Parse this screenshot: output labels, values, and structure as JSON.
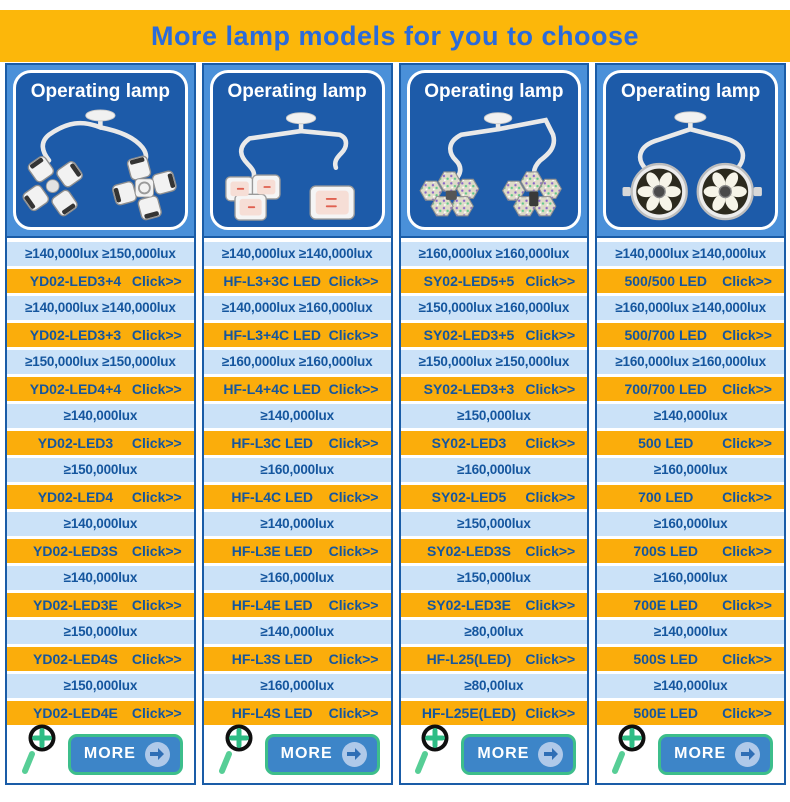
{
  "banner": {
    "title": "More lamp models for you to choose"
  },
  "colors": {
    "banner_bg": "#FCB70A",
    "banner_text": "#2A6BDB",
    "column_frame": "#4A90D9",
    "column_border": "#1A5CA7",
    "panel_bg": "#1D5BA9",
    "lux_row_bg": "#CBE2F8",
    "model_row_bg": "#FBAD0B",
    "row_text": "#15569E",
    "more_button_bg": "#3D85C8",
    "more_button_border": "#3DBE8B",
    "magnifier_green": "#2EBD85"
  },
  "columns": [
    {
      "header": "Operating lamp",
      "image_icon": "dual-petal-head-lamp-icon",
      "more_label": "MORE",
      "rows": [
        {
          "type": "lux",
          "text": "≥140,000lux ≥150,000lux"
        },
        {
          "type": "model",
          "model": "YD02-LED3+4",
          "click": "Click>>"
        },
        {
          "type": "lux",
          "text": "≥140,000lux ≥140,000lux"
        },
        {
          "type": "model",
          "model": "YD02-LED3+3",
          "click": "Click>>"
        },
        {
          "type": "lux",
          "text": "≥150,000lux ≥150,000lux"
        },
        {
          "type": "model",
          "model": "YD02-LED4+4",
          "click": "Click>>"
        },
        {
          "type": "lux",
          "text": "≥140,000lux"
        },
        {
          "type": "model",
          "model": "YD02-LED3",
          "click": "Click>>"
        },
        {
          "type": "lux",
          "text": "≥150,000lux"
        },
        {
          "type": "model",
          "model": "YD02-LED4",
          "click": "Click>>"
        },
        {
          "type": "lux",
          "text": "≥140,000lux"
        },
        {
          "type": "model",
          "model": "YD02-LED3S",
          "click": "Click>>"
        },
        {
          "type": "lux",
          "text": "≥140,000lux"
        },
        {
          "type": "model",
          "model": "YD02-LED3E",
          "click": "Click>>"
        },
        {
          "type": "lux",
          "text": "≥150,000lux"
        },
        {
          "type": "model",
          "model": "YD02-LED4S",
          "click": "Click>>"
        },
        {
          "type": "lux",
          "text": "≥150,000lux"
        },
        {
          "type": "model",
          "model": "YD02-LED4E",
          "click": "Click>>"
        }
      ]
    },
    {
      "header": "Operating lamp",
      "image_icon": "dual-square-head-lamp-icon",
      "more_label": "MORE",
      "rows": [
        {
          "type": "lux",
          "text": "≥140,000lux ≥140,000lux"
        },
        {
          "type": "model",
          "model": "HF-L3+3C LED",
          "click": "Click>>"
        },
        {
          "type": "lux",
          "text": "≥140,000lux ≥160,000lux"
        },
        {
          "type": "model",
          "model": "HF-L3+4C LED",
          "click": "Click>>"
        },
        {
          "type": "lux",
          "text": "≥160,000lux ≥160,000lux"
        },
        {
          "type": "model",
          "model": "HF-L4+4C LED",
          "click": "Click>>"
        },
        {
          "type": "lux",
          "text": "≥140,000lux"
        },
        {
          "type": "model",
          "model": "HF-L3C LED",
          "click": "Click>>"
        },
        {
          "type": "lux",
          "text": "≥160,000lux"
        },
        {
          "type": "model",
          "model": "HF-L4C LED",
          "click": "Click>>"
        },
        {
          "type": "lux",
          "text": "≥140,000lux"
        },
        {
          "type": "model",
          "model": "HF-L3E LED",
          "click": "Click>>"
        },
        {
          "type": "lux",
          "text": "≥160,000lux"
        },
        {
          "type": "model",
          "model": "HF-L4E LED",
          "click": "Click>>"
        },
        {
          "type": "lux",
          "text": "≥140,000lux"
        },
        {
          "type": "model",
          "model": "HF-L3S LED",
          "click": "Click>>"
        },
        {
          "type": "lux",
          "text": "≥160,000lux"
        },
        {
          "type": "model",
          "model": "HF-L4S LED",
          "click": "Click>>"
        }
      ]
    },
    {
      "header": "Operating lamp",
      "image_icon": "dual-hex-led-lamp-icon",
      "more_label": "MORE",
      "rows": [
        {
          "type": "lux",
          "text": "≥160,000lux ≥160,000lux"
        },
        {
          "type": "model",
          "model": "SY02-LED5+5",
          "click": "Click>>"
        },
        {
          "type": "lux",
          "text": "≥150,000lux ≥160,000lux"
        },
        {
          "type": "model",
          "model": "SY02-LED3+5",
          "click": "Click>>"
        },
        {
          "type": "lux",
          "text": "≥150,000lux ≥150,000lux"
        },
        {
          "type": "model",
          "model": "SY02-LED3+3",
          "click": "Click>>"
        },
        {
          "type": "lux",
          "text": "≥150,000lux"
        },
        {
          "type": "model",
          "model": "SY02-LED3",
          "click": "Click>>"
        },
        {
          "type": "lux",
          "text": "≥160,000lux"
        },
        {
          "type": "model",
          "model": "SY02-LED5",
          "click": "Click>>"
        },
        {
          "type": "lux",
          "text": "≥150,000lux"
        },
        {
          "type": "model",
          "model": "SY02-LED3S",
          "click": "Click>>"
        },
        {
          "type": "lux",
          "text": "≥150,000lux"
        },
        {
          "type": "model",
          "model": "SY02-LED3E",
          "click": "Click>>"
        },
        {
          "type": "lux",
          "text": "≥80,00lux"
        },
        {
          "type": "model",
          "model": "HF-L25(LED)",
          "click": "Click>>"
        },
        {
          "type": "lux",
          "text": "≥80,00lux"
        },
        {
          "type": "model",
          "model": "HF-L25E(LED)",
          "click": "Click>>"
        }
      ]
    },
    {
      "header": "Operating lamp",
      "image_icon": "dual-round-dome-lamp-icon",
      "more_label": "MORE",
      "rows": [
        {
          "type": "lux",
          "text": "≥140,000lux ≥140,000lux"
        },
        {
          "type": "model",
          "model": "500/500 LED",
          "click": "Click>>"
        },
        {
          "type": "lux",
          "text": "≥160,000lux ≥140,000lux"
        },
        {
          "type": "model",
          "model": "500/700 LED",
          "click": "Click>>"
        },
        {
          "type": "lux",
          "text": "≥160,000lux ≥160,000lux"
        },
        {
          "type": "model",
          "model": "700/700 LED",
          "click": "Click>>"
        },
        {
          "type": "lux",
          "text": "≥140,000lux"
        },
        {
          "type": "model",
          "model": "500 LED",
          "click": "Click>>"
        },
        {
          "type": "lux",
          "text": "≥160,000lux"
        },
        {
          "type": "model",
          "model": "700 LED",
          "click": "Click>>"
        },
        {
          "type": "lux",
          "text": "≥160,000lux"
        },
        {
          "type": "model",
          "model": "700S LED",
          "click": "Click>>"
        },
        {
          "type": "lux",
          "text": "≥160,000lux"
        },
        {
          "type": "model",
          "model": "700E LED",
          "click": "Click>>"
        },
        {
          "type": "lux",
          "text": "≥140,000lux"
        },
        {
          "type": "model",
          "model": "500S LED",
          "click": "Click>>"
        },
        {
          "type": "lux",
          "text": "≥140,000lux"
        },
        {
          "type": "model",
          "model": "500E LED",
          "click": "Click>>"
        }
      ]
    }
  ]
}
